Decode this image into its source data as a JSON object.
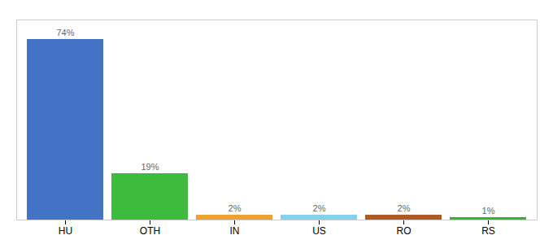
{
  "chart_data": {
    "type": "bar",
    "categories": [
      "HU",
      "OTH",
      "IN",
      "US",
      "RO",
      "RS"
    ],
    "values": [
      74,
      19,
      2,
      2,
      2,
      1
    ],
    "value_labels": [
      "74%",
      "19%",
      "2%",
      "2%",
      "2%",
      "1%"
    ],
    "colors": [
      "#4472c4",
      "#3dbb3d",
      "#f0a030",
      "#7fd4e8",
      "#b05a20",
      "#2db82d"
    ],
    "ylim": [
      0,
      82
    ],
    "yticks": [],
    "tick_labels": "x",
    "data_labels": true,
    "grid": false
  }
}
